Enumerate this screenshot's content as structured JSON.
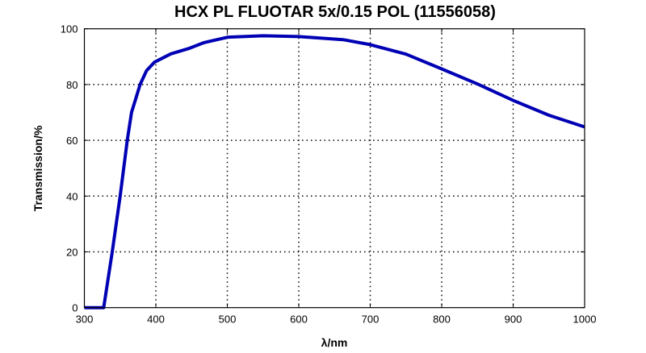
{
  "chart_data": {
    "type": "line",
    "title": "HCX PL FLUOTAR 5x/0.15 POL (11556058)",
    "xlabel": "λ/nm",
    "ylabel": "Transmission/%",
    "xlim": [
      300,
      1000
    ],
    "ylim": [
      0,
      100
    ],
    "xticks": [
      300,
      400,
      500,
      600,
      700,
      800,
      900,
      1000
    ],
    "yticks": [
      0,
      20,
      40,
      60,
      80,
      100
    ],
    "grid": true,
    "grid_style": "dotted",
    "line_color": "#0000b4",
    "series": [
      {
        "x": [
          300,
          327,
          339,
          350,
          360,
          366,
          378,
          387,
          398,
          421,
          447,
          467,
          501,
          550,
          600,
          662,
          700,
          750,
          800,
          850,
          900,
          950,
          1000
        ],
        "y": [
          0,
          0,
          20,
          40,
          60,
          70,
          80,
          85,
          88,
          91,
          93,
          95,
          97,
          97.5,
          97.2,
          96.1,
          94.3,
          90.9,
          85.6,
          80.2,
          74.3,
          69,
          64.8
        ]
      }
    ]
  }
}
